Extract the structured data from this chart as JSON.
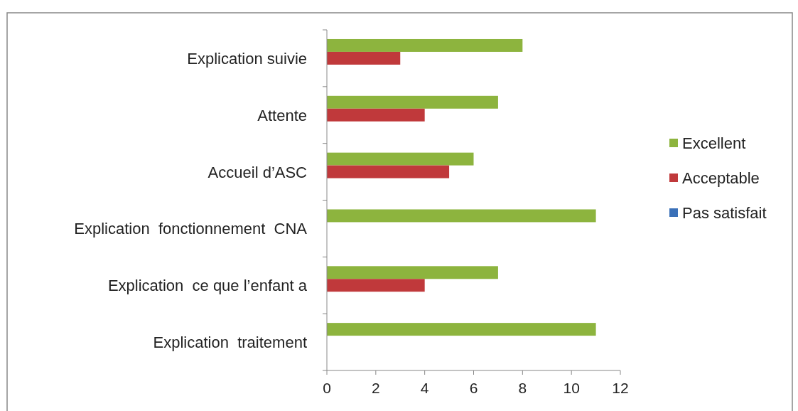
{
  "chart_data": {
    "type": "bar",
    "orientation": "horizontal",
    "categories": [
      "Explication suivie",
      "Attente",
      "Accueil d’ASC",
      "Explication  fonctionnement  CNA",
      "Explication  ce que l’enfant a",
      "Explication  traitement"
    ],
    "series": [
      {
        "name": "Excellent",
        "color": "#8db43e",
        "values": [
          8,
          7,
          6,
          11,
          7,
          11
        ]
      },
      {
        "name": "Acceptable",
        "color": "#c0393b",
        "values": [
          3,
          4,
          5,
          0,
          4,
          0
        ]
      },
      {
        "name": "Pas satisfait",
        "color": "#3a70b8",
        "values": [
          0,
          0,
          0,
          0,
          0,
          0
        ]
      }
    ],
    "xlim": [
      0,
      12
    ],
    "xticks": [
      0,
      2,
      4,
      6,
      8,
      10,
      12
    ],
    "grid": false,
    "legend": "right"
  }
}
